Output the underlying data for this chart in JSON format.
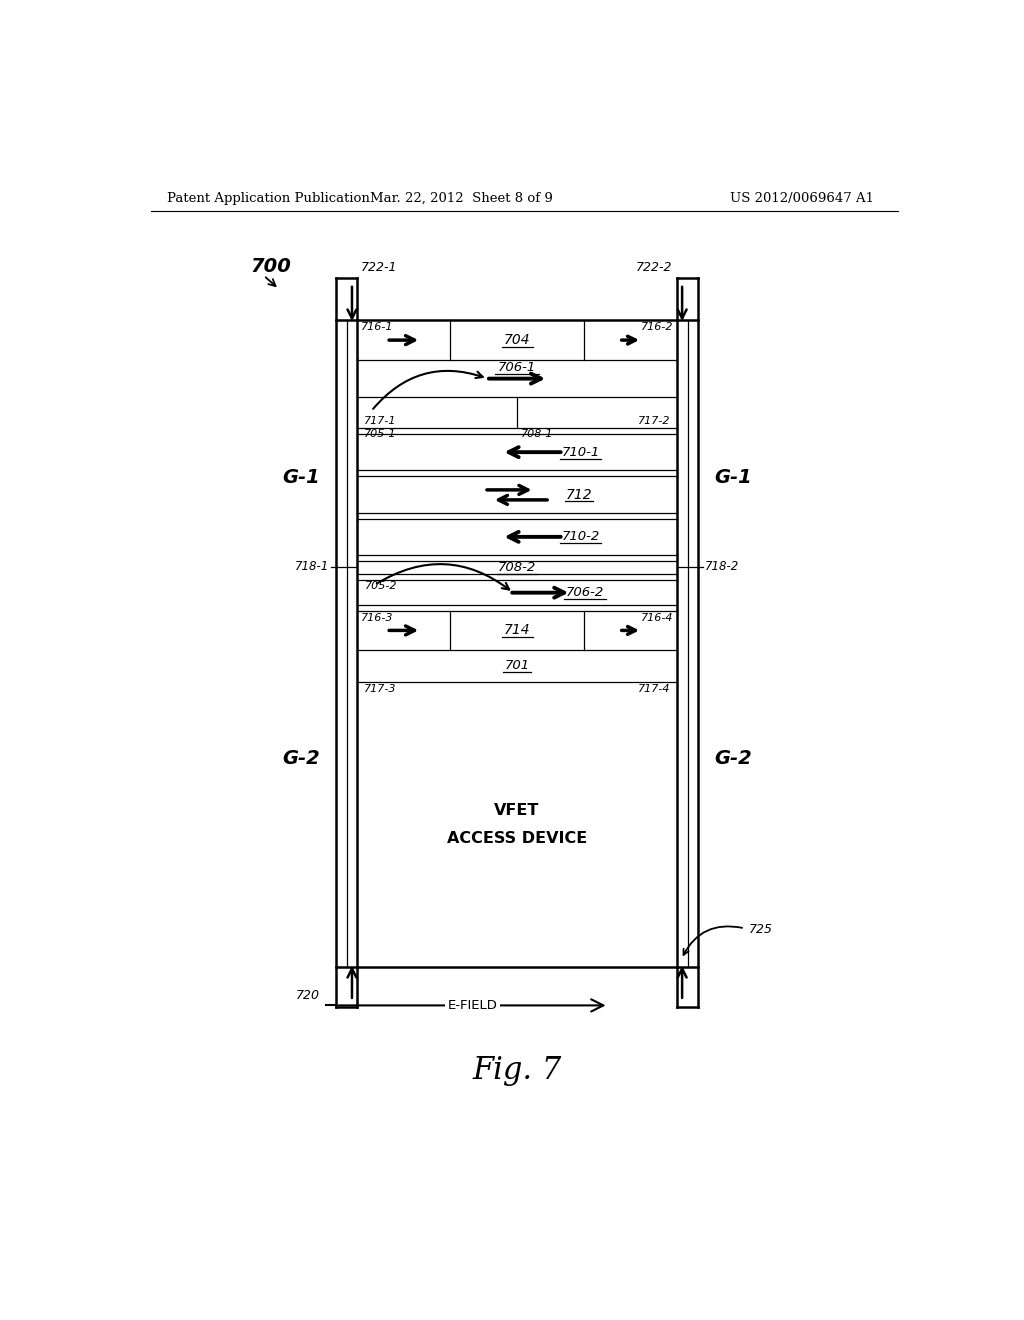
{
  "bg_color": "#ffffff",
  "header_left": "Patent Application Publication",
  "header_mid": "Mar. 22, 2012  Sheet 8 of 9",
  "header_right": "US 2012/0069647 A1",
  "fig_label": "Fig. 7"
}
